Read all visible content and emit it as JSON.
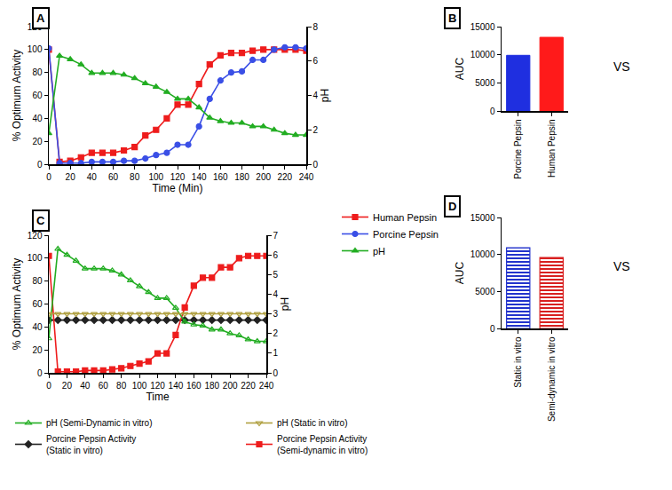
{
  "chart_data": [
    {
      "panel": "A",
      "type": "line",
      "x_label": "Time (Min)",
      "y_label": "% Optimum Activity",
      "y2_label": "pH",
      "x": [
        0,
        10,
        20,
        30,
        40,
        50,
        60,
        70,
        80,
        90,
        100,
        110,
        120,
        130,
        140,
        150,
        160,
        170,
        180,
        190,
        200,
        210,
        220,
        230,
        240
      ],
      "series": [
        {
          "name": "Human Pepsin",
          "color": "#ee1c1c",
          "marker": "square",
          "values": [
            100,
            2,
            3,
            6,
            10,
            10,
            10,
            12,
            15,
            25,
            30,
            40,
            52,
            52,
            70,
            87,
            95,
            97,
            97,
            99,
            100,
            100,
            100,
            100,
            99
          ]
        },
        {
          "name": "Porcine Pepsin",
          "color": "#3a4fe6",
          "marker": "circle",
          "values": [
            101,
            1,
            1,
            1,
            2,
            2,
            2,
            3,
            3,
            5,
            8,
            10,
            17,
            17,
            33,
            57,
            73,
            80,
            81,
            91,
            91,
            100,
            102,
            102,
            101
          ]
        },
        {
          "name": "pH",
          "color": "#22ad22",
          "marker": "triangle-up",
          "axis": "y2",
          "values": [
            1.8,
            6.3,
            6.1,
            5.8,
            5.3,
            5.3,
            5.3,
            5.2,
            5.0,
            4.7,
            4.5,
            4.2,
            3.8,
            3.8,
            3.3,
            2.7,
            2.5,
            2.4,
            2.4,
            2.2,
            2.2,
            2.0,
            1.8,
            1.7,
            1.7
          ]
        }
      ],
      "xlim": [
        0,
        240
      ],
      "xticks": [
        0,
        20,
        40,
        60,
        80,
        100,
        120,
        140,
        160,
        180,
        200,
        220,
        240
      ],
      "ylim": [
        0,
        120
      ],
      "yticks": [
        0,
        20,
        40,
        60,
        80,
        100,
        120
      ],
      "y2lim": [
        0,
        8
      ],
      "y2ticks": [
        0,
        2,
        4,
        6,
        8
      ],
      "grid": false,
      "legend": "bottom right"
    },
    {
      "panel": "B",
      "type": "bar",
      "y_label": "AUC",
      "categories": [
        "Porcine Pepsin",
        "Human Pepsin"
      ],
      "values": [
        9900,
        13100
      ],
      "colors": [
        "#1f2fe0",
        "#ff1a1a"
      ],
      "ylim": [
        0,
        15000
      ],
      "yticks": [
        0,
        5000,
        10000,
        15000
      ],
      "grid": false,
      "annotations": [
        "VS"
      ]
    },
    {
      "panel": "C",
      "type": "line",
      "x_label": "Time",
      "y_label": "% Optimum Activity",
      "y2_label": "pH",
      "x": [
        0,
        10,
        20,
        30,
        40,
        50,
        60,
        70,
        80,
        90,
        100,
        110,
        120,
        130,
        140,
        150,
        160,
        170,
        180,
        190,
        200,
        210,
        220,
        230,
        240
      ],
      "series": [
        {
          "name": "pH (Semi-Dynamic in vitro)",
          "color": "#22ad22",
          "marker": "triangle-up-open",
          "axis": "y2",
          "values": [
            1.75,
            6.3,
            6.0,
            5.7,
            5.3,
            5.3,
            5.3,
            5.2,
            5.0,
            4.7,
            4.4,
            4.1,
            3.8,
            3.8,
            3.3,
            2.6,
            2.45,
            2.4,
            2.2,
            2.2,
            2.0,
            1.9,
            1.7,
            1.6,
            1.6
          ]
        },
        {
          "name": "pH (Static in vitro)",
          "color": "#b0a040",
          "marker": "triangle-down-open",
          "axis": "y2",
          "values": [
            3.0,
            3.0,
            3.0,
            3.0,
            3.0,
            3.0,
            3.0,
            3.0,
            3.0,
            3.0,
            3.0,
            3.0,
            3.0,
            3.0,
            3.0,
            3.0,
            3.0,
            3.0,
            3.0,
            3.0,
            3.0,
            3.0,
            3.0,
            3.0,
            3.0
          ]
        },
        {
          "name": "Porcine Pepsin Activity (Static in vitro)",
          "color": "#222222",
          "marker": "diamond",
          "values": [
            46,
            46,
            46,
            46,
            46,
            46,
            46,
            46,
            46,
            46,
            46,
            46,
            46,
            46,
            46,
            46,
            46,
            46,
            46,
            46,
            46,
            46,
            46,
            46,
            46
          ]
        },
        {
          "name": "Porcine Pepsin Activity (Semi-dynamic in vitro)",
          "color": "#ee1c1c",
          "marker": "square",
          "values": [
            102,
            1,
            1,
            1,
            2,
            2,
            2,
            3,
            4,
            6,
            8,
            10,
            17,
            17,
            33,
            57,
            76,
            83,
            83,
            92,
            92,
            100,
            102,
            102,
            102
          ]
        }
      ],
      "xlim": [
        0,
        240
      ],
      "xticks": [
        0,
        20,
        40,
        60,
        80,
        100,
        120,
        140,
        160,
        180,
        200,
        220,
        240
      ],
      "ylim": [
        0,
        120
      ],
      "yticks": [
        0,
        20,
        40,
        60,
        80,
        100,
        120
      ],
      "y2lim": [
        0,
        7
      ],
      "y2ticks": [
        0,
        1,
        2,
        3,
        4,
        5,
        6,
        7
      ],
      "grid": false,
      "legend": "bottom"
    },
    {
      "panel": "D",
      "type": "bar",
      "y_label": "AUC",
      "categories": [
        "Static in vitro",
        "Semi-dynamic in vitro"
      ],
      "values": [
        10900,
        9600
      ],
      "colors": [
        "#2233cc",
        "#d82020"
      ],
      "ylim": [
        0,
        15000
      ],
      "yticks": [
        0,
        5000,
        10000,
        15000
      ],
      "grid": false,
      "annotations": [
        "VS"
      ]
    }
  ]
}
